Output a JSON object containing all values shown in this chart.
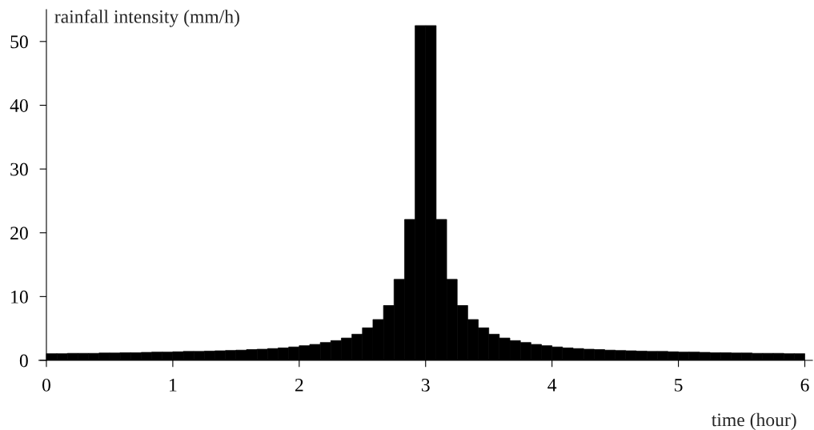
{
  "chart_data": {
    "type": "histogram",
    "xlabel": "time (hour)",
    "ylabel": "rainfall intensity (mm/h)",
    "bins": [
      0,
      0.0833,
      0.1667,
      0.25,
      0.3333,
      0.4167,
      0.5,
      0.5833,
      0.6667,
      0.75,
      0.8333,
      0.9167,
      1,
      1.0833,
      1.1667,
      1.25,
      1.3333,
      1.4167,
      1.5,
      1.5833,
      1.6667,
      1.75,
      1.8333,
      1.9167,
      2,
      2.0833,
      2.1667,
      2.25,
      2.3333,
      2.4167,
      2.5,
      2.5833,
      2.6667,
      2.75,
      2.8333,
      2.9167,
      3,
      3.0833,
      3.1667,
      3.25,
      3.3333,
      3.4167,
      3.5,
      3.5833,
      3.6667,
      3.75,
      3.8333,
      3.9167,
      4,
      4.0833,
      4.1667,
      4.25,
      4.3333,
      4.4167,
      4.5,
      4.5833,
      4.6667,
      4.75,
      4.8333,
      4.9167,
      5,
      5.0833,
      5.1667,
      5.25,
      5.3333,
      5.4167,
      5.5,
      5.5833,
      5.6667,
      5.75,
      5.8333,
      5.9167,
      6
    ],
    "values": [
      1.05,
      1.05,
      1.1,
      1.1,
      1.1,
      1.15,
      1.15,
      1.2,
      1.2,
      1.25,
      1.3,
      1.3,
      1.35,
      1.4,
      1.4,
      1.45,
      1.5,
      1.55,
      1.6,
      1.7,
      1.75,
      1.85,
      1.95,
      2.1,
      2.3,
      2.5,
      2.8,
      3.1,
      3.5,
      4.1,
      5.1,
      6.4,
      8.6,
      12.7,
      22.1,
      52.5,
      52.5,
      22.1,
      12.7,
      8.6,
      6.4,
      5.1,
      4.1,
      3.5,
      3.1,
      2.8,
      2.5,
      2.3,
      2.1,
      1.95,
      1.85,
      1.75,
      1.7,
      1.6,
      1.55,
      1.5,
      1.45,
      1.4,
      1.4,
      1.35,
      1.3,
      1.3,
      1.25,
      1.2,
      1.2,
      1.15,
      1.15,
      1.1,
      1.1,
      1.1,
      1.05,
      1.05
    ],
    "color": "#000000",
    "xlim": [
      -0.06,
      6.06
    ],
    "ylim": [
      0,
      55
    ],
    "xticks": [
      0,
      1,
      2,
      3,
      4,
      5,
      6
    ],
    "yticks": [
      0,
      10,
      20,
      30,
      40,
      50
    ],
    "grid": false
  }
}
